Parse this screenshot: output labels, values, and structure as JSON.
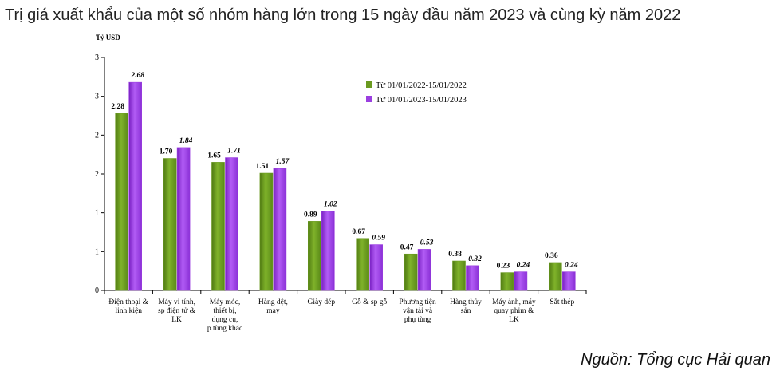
{
  "title": "Trị giá xuất khẩu của một số nhóm hàng lớn trong 15 ngày đầu năm 2023 và cùng kỳ năm 2022",
  "source": "Nguồn: Tổng cục Hải quan",
  "colors": {
    "series_2022": "#6a9a1f",
    "series_2023": "#9b3fe0"
  },
  "chart_data": {
    "type": "bar",
    "ylabel": "Tỷ USD",
    "ylim": [
      0,
      3
    ],
    "y_tick_values": [
      0,
      0.5,
      1,
      1.5,
      2,
      2.5,
      3
    ],
    "y_tick_labels": [
      "0",
      "1",
      "1",
      "2",
      "2",
      "3",
      "3"
    ],
    "categories": [
      "Điện thoại & linh kiện",
      "Máy vi tính, sp điện tử & LK",
      "Máy móc, thiết bị, dụng cụ, p.tùng khác",
      "Hàng dệt, may",
      "Giày dép",
      "Gỗ & sp gỗ",
      "Phương tiện vận tải và phụ tùng",
      "Hàng thủy sản",
      "Máy ảnh, máy quay phim & LK",
      "Sắt thép"
    ],
    "series": [
      {
        "name": "Từ 01/01/2022-15/01/2022",
        "values": [
          2.28,
          1.7,
          1.65,
          1.51,
          0.89,
          0.67,
          0.47,
          0.38,
          0.23,
          0.36
        ],
        "labels": [
          "2.28",
          "1.70",
          "1.65",
          "1.51",
          "0.89",
          "0.67",
          "0.47",
          "0.38",
          "0.23",
          "0.36"
        ]
      },
      {
        "name": "Từ 01/01/2023-15/01/2023",
        "values": [
          2.68,
          1.84,
          1.71,
          1.57,
          1.02,
          0.59,
          0.53,
          0.32,
          0.24,
          0.24
        ],
        "labels": [
          "2.68",
          "1.84",
          "1.71",
          "1.57",
          "1.02",
          "0.59",
          "0.53",
          "0.32",
          "0.24",
          "0.24"
        ]
      }
    ],
    "legend_position": "top-right",
    "grid": false
  }
}
